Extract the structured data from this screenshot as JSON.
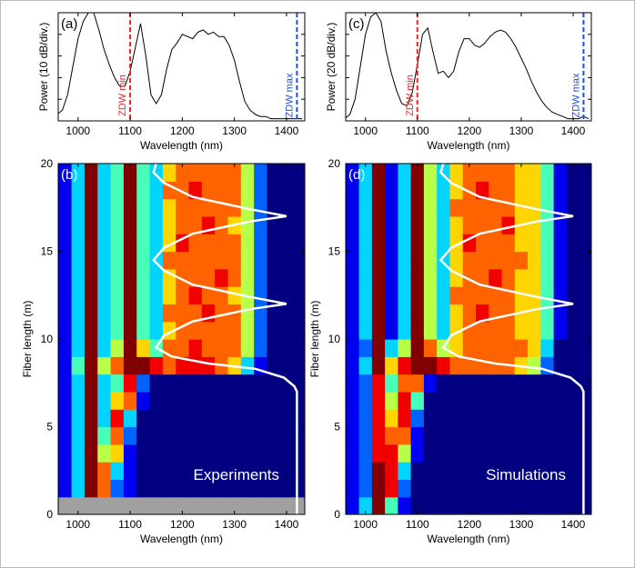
{
  "chart_data": [
    {
      "type": "line",
      "panel_label": "(a)",
      "xlabel": "Wavelength (nm)",
      "ylabel": "Power (10 dB/div.)",
      "xlim": [
        962,
        1435
      ],
      "xticks": [
        1000,
        1100,
        1200,
        1300,
        1400
      ],
      "ylim": [
        0,
        5
      ],
      "yticks": [
        0,
        1,
        2,
        3,
        4,
        5
      ],
      "show_ytick_labels": false,
      "x": [
        960,
        970,
        980,
        990,
        1000,
        1010,
        1020,
        1030,
        1040,
        1050,
        1060,
        1070,
        1080,
        1090,
        1100,
        1110,
        1120,
        1130,
        1140,
        1150,
        1160,
        1170,
        1180,
        1190,
        1200,
        1210,
        1220,
        1230,
        1240,
        1250,
        1260,
        1270,
        1280,
        1290,
        1300,
        1310,
        1320,
        1330,
        1340,
        1350,
        1360,
        1370,
        1380,
        1390,
        1400,
        1410,
        1420,
        1430
      ],
      "series": [
        {
          "color": "#000000",
          "values": [
            0.3,
            0.5,
            1.2,
            2.5,
            3.8,
            4.6,
            5.0,
            5.0,
            4.2,
            3.3,
            2.6,
            2.0,
            1.6,
            1.6,
            2.3,
            3.4,
            4.5,
            3.0,
            1.2,
            0.8,
            1.2,
            2.4,
            3.3,
            3.6,
            4.0,
            3.9,
            3.8,
            4.1,
            4.2,
            4.0,
            4.1,
            3.9,
            3.9,
            3.5,
            2.8,
            1.8,
            0.9,
            0.5,
            0.3,
            0.2,
            0.2,
            0.1,
            0.1,
            0.1,
            0.1,
            0.1,
            0.1,
            0.1
          ]
        }
      ],
      "vlines": [
        {
          "x": 1100,
          "label": "ZDW min",
          "color": "#e8262a"
        },
        {
          "x": 1420,
          "label": "ZDW max",
          "color": "#1f4fd8"
        }
      ]
    },
    {
      "type": "heatmap",
      "panel_label": "(b)",
      "xlabel": "Wavelength (nm)",
      "ylabel": "Fiber length (m)",
      "annotation": "Experiments",
      "xlim": [
        962,
        1435
      ],
      "xticks": [
        1000,
        1100,
        1200,
        1300,
        1400
      ],
      "ylim": [
        0,
        20
      ],
      "yticks": [
        0,
        5,
        10,
        15,
        20
      ],
      "zlim": [
        0,
        9
      ],
      "null_color": "#a0a0a0",
      "x_bins": [
        962.5,
        987.5,
        1012.5,
        1037.5,
        1062.5,
        1087.5,
        1112.5,
        1137.5,
        1162.5,
        1187.5,
        1212.5,
        1237.5,
        1262.5,
        1287.5,
        1312.5,
        1337.5,
        1362.5,
        1387.5,
        1412.5,
        1437.5
      ],
      "y_bins": [
        0,
        1,
        2,
        3,
        4,
        5,
        6,
        7,
        8,
        9,
        10,
        11,
        12,
        13,
        14,
        15,
        16,
        17,
        18,
        19,
        20
      ],
      "z": [
        [
          null,
          null,
          null,
          null,
          null,
          null,
          null,
          null,
          null,
          null,
          null,
          null,
          null,
          null,
          null,
          null,
          null,
          null,
          null
        ],
        [
          1,
          3,
          9,
          7,
          2,
          1,
          0,
          0,
          0,
          0,
          0,
          0,
          0,
          0,
          0,
          0,
          0,
          0,
          0
        ],
        [
          1,
          3,
          9,
          7,
          3,
          1,
          0,
          0,
          0,
          0,
          0,
          0,
          0,
          0,
          0,
          0,
          0,
          0,
          0
        ],
        [
          1,
          3,
          9,
          5,
          6,
          1,
          0,
          0,
          0,
          0,
          0,
          0,
          0,
          0,
          0,
          0,
          0,
          0,
          0
        ],
        [
          1,
          3,
          9,
          4,
          7,
          2,
          0,
          0,
          0,
          0,
          0,
          0,
          0,
          0,
          0,
          0,
          0,
          0,
          0
        ],
        [
          1,
          3,
          9,
          3,
          8,
          3,
          0,
          0,
          0,
          0,
          0,
          0,
          0,
          0,
          0,
          0,
          0,
          0,
          0
        ],
        [
          1,
          3,
          9,
          3,
          6,
          7,
          1,
          0,
          0,
          0,
          0,
          0,
          0,
          0,
          0,
          0,
          0,
          0,
          0
        ],
        [
          1,
          3,
          9,
          3,
          4,
          8,
          2,
          0,
          0,
          0,
          0,
          0,
          0,
          0,
          0,
          0,
          0,
          0,
          0
        ],
        [
          1,
          4,
          9,
          5,
          7,
          9,
          9,
          8,
          7,
          8,
          8,
          8,
          7,
          6,
          3,
          1,
          0,
          0,
          0
        ],
        [
          1,
          3,
          9,
          3,
          5,
          9,
          6,
          4,
          7,
          7,
          8,
          7,
          7,
          7,
          5,
          2,
          0,
          0,
          0
        ],
        [
          1,
          3,
          9,
          3,
          4,
          9,
          4,
          3,
          6,
          7,
          7,
          7,
          7,
          7,
          5,
          2,
          0,
          0,
          0
        ],
        [
          1,
          3,
          9,
          3,
          4,
          9,
          4,
          3,
          7,
          7,
          7,
          8,
          7,
          7,
          5,
          2,
          0,
          0,
          0
        ],
        [
          1,
          3,
          9,
          3,
          4,
          9,
          4,
          3,
          6,
          7,
          8,
          7,
          7,
          6,
          5,
          2,
          0,
          0,
          0
        ],
        [
          1,
          3,
          9,
          3,
          4,
          9,
          4,
          3,
          6,
          7,
          7,
          7,
          8,
          7,
          5,
          2,
          0,
          0,
          0
        ],
        [
          1,
          3,
          9,
          3,
          4,
          9,
          4,
          3,
          7,
          7,
          7,
          7,
          7,
          7,
          5,
          2,
          0,
          0,
          0
        ],
        [
          1,
          3,
          9,
          3,
          4,
          9,
          4,
          3,
          6,
          8,
          7,
          7,
          7,
          7,
          5,
          2,
          0,
          0,
          0
        ],
        [
          1,
          3,
          9,
          3,
          4,
          9,
          4,
          3,
          6,
          7,
          7,
          8,
          7,
          6,
          5,
          2,
          0,
          0,
          0
        ],
        [
          1,
          3,
          9,
          3,
          4,
          9,
          4,
          3,
          6,
          7,
          7,
          7,
          7,
          7,
          5,
          2,
          0,
          0,
          0
        ],
        [
          1,
          3,
          9,
          3,
          4,
          9,
          4,
          3,
          7,
          7,
          8,
          7,
          7,
          7,
          5,
          2,
          0,
          0,
          0
        ],
        [
          1,
          3,
          9,
          3,
          4,
          9,
          4,
          3,
          6,
          7,
          7,
          7,
          7,
          7,
          5,
          2,
          0,
          0,
          0
        ]
      ],
      "overlay": {
        "color": "#ffffff",
        "x": [
          1420,
          1420,
          1415,
          1395,
          1340,
          1250,
          1180,
          1150,
          1165,
          1220,
          1330,
          1400,
          1330,
          1220,
          1165,
          1145,
          1165,
          1220,
          1330,
          1400,
          1330,
          1220,
          1165,
          1145,
          1150
        ],
        "y": [
          0,
          7.0,
          7.3,
          7.8,
          8.3,
          8.6,
          9.0,
          9.5,
          10.2,
          11.0,
          11.7,
          12.0,
          12.4,
          13.1,
          13.9,
          14.5,
          15.2,
          16.0,
          16.7,
          17.0,
          17.4,
          18.1,
          18.9,
          19.5,
          20
        ]
      }
    },
    {
      "type": "line",
      "panel_label": "(c)",
      "xlabel": "Wavelength (nm)",
      "ylabel": "Power (20 dB/div.)",
      "xlim": [
        962,
        1435
      ],
      "xticks": [
        1000,
        1100,
        1200,
        1300,
        1400
      ],
      "ylim": [
        0,
        5
      ],
      "yticks": [
        0,
        1,
        2,
        3,
        4,
        5
      ],
      "show_ytick_labels": false,
      "x": [
        960,
        970,
        980,
        990,
        1000,
        1010,
        1020,
        1030,
        1040,
        1050,
        1060,
        1070,
        1080,
        1090,
        1100,
        1110,
        1120,
        1130,
        1140,
        1150,
        1160,
        1170,
        1180,
        1190,
        1200,
        1210,
        1220,
        1230,
        1240,
        1250,
        1260,
        1270,
        1280,
        1290,
        1300,
        1310,
        1320,
        1330,
        1340,
        1350,
        1360,
        1370,
        1380,
        1390,
        1400,
        1410,
        1420,
        1430
      ],
      "series": [
        {
          "color": "#000000",
          "values": [
            0.1,
            0.3,
            1.0,
            2.5,
            4.0,
            4.8,
            5.0,
            4.6,
            3.2,
            2.2,
            1.4,
            0.8,
            0.7,
            1.3,
            2.6,
            4.0,
            4.3,
            3.2,
            2.2,
            2.3,
            2.0,
            2.3,
            3.2,
            3.8,
            3.8,
            3.5,
            3.4,
            3.6,
            3.9,
            4.1,
            4.2,
            4.1,
            3.8,
            3.4,
            2.9,
            2.4,
            1.8,
            1.3,
            0.9,
            0.6,
            0.4,
            0.3,
            0.2,
            0.1,
            0.1,
            0.1,
            0.2,
            0.1
          ]
        }
      ],
      "vlines": [
        {
          "x": 1100,
          "label": "ZDW min",
          "color": "#e8262a"
        },
        {
          "x": 1420,
          "label": "ZDW max",
          "color": "#1f4fd8"
        }
      ]
    },
    {
      "type": "heatmap",
      "panel_label": "(d)",
      "xlabel": "Wavelength (nm)",
      "ylabel": "Fiber length (m)",
      "annotation": "Simulations",
      "xlim": [
        962,
        1435
      ],
      "xticks": [
        1000,
        1100,
        1200,
        1300,
        1400
      ],
      "ylim": [
        0,
        20
      ],
      "yticks": [
        0,
        5,
        10,
        15,
        20
      ],
      "zlim": [
        0,
        9
      ],
      "null_color": "#a0a0a0",
      "x_bins": [
        962.5,
        987.5,
        1012.5,
        1037.5,
        1062.5,
        1087.5,
        1112.5,
        1137.5,
        1162.5,
        1187.5,
        1212.5,
        1237.5,
        1262.5,
        1287.5,
        1312.5,
        1337.5,
        1362.5,
        1387.5,
        1412.5,
        1437.5
      ],
      "y_bins": [
        0,
        1,
        2,
        3,
        4,
        5,
        6,
        7,
        8,
        9,
        10,
        11,
        12,
        13,
        14,
        15,
        16,
        17,
        18,
        19,
        20
      ],
      "z": [
        [
          1,
          3,
          9,
          4,
          1,
          0,
          0,
          0,
          0,
          0,
          0,
          0,
          0,
          0,
          0,
          0,
          0,
          0,
          0
        ],
        [
          1,
          2,
          9,
          8,
          2,
          0,
          0,
          0,
          0,
          0,
          0,
          0,
          0,
          0,
          0,
          0,
          0,
          0,
          0
        ],
        [
          1,
          2,
          9,
          8,
          3,
          0,
          0,
          0,
          0,
          0,
          0,
          0,
          0,
          0,
          0,
          0,
          0,
          0,
          0
        ],
        [
          1,
          2,
          8,
          8,
          5,
          1,
          0,
          0,
          0,
          0,
          0,
          0,
          0,
          0,
          0,
          0,
          0,
          0,
          0
        ],
        [
          1,
          2,
          8,
          7,
          7,
          1,
          0,
          0,
          0,
          0,
          0,
          0,
          0,
          0,
          0,
          0,
          0,
          0,
          0
        ],
        [
          1,
          2,
          8,
          6,
          8,
          2,
          0,
          0,
          0,
          0,
          0,
          0,
          0,
          0,
          0,
          0,
          0,
          0,
          0
        ],
        [
          1,
          2,
          8,
          5,
          8,
          4,
          0,
          0,
          0,
          0,
          0,
          0,
          0,
          0,
          0,
          0,
          0,
          0,
          0
        ],
        [
          1,
          2,
          8,
          4,
          7,
          7,
          1,
          0,
          0,
          0,
          0,
          0,
          0,
          0,
          0,
          0,
          0,
          0,
          0
        ],
        [
          1,
          3,
          9,
          6,
          8,
          9,
          9,
          8,
          7,
          7,
          7,
          7,
          7,
          6,
          5,
          2,
          0,
          0,
          0
        ],
        [
          1,
          2,
          9,
          3,
          5,
          9,
          7,
          5,
          6,
          7,
          7,
          7,
          7,
          7,
          6,
          3,
          0,
          0,
          0
        ],
        [
          1,
          3,
          9,
          1,
          3,
          9,
          5,
          3,
          6,
          7,
          7,
          7,
          7,
          6,
          6,
          4,
          1,
          0,
          0
        ],
        [
          1,
          3,
          9,
          1,
          3,
          9,
          5,
          3,
          6,
          7,
          8,
          7,
          7,
          6,
          6,
          4,
          1,
          0,
          0
        ],
        [
          1,
          3,
          9,
          1,
          3,
          9,
          5,
          3,
          7,
          7,
          7,
          7,
          7,
          6,
          6,
          4,
          1,
          0,
          0
        ],
        [
          1,
          3,
          9,
          1,
          3,
          9,
          5,
          3,
          6,
          7,
          7,
          8,
          7,
          6,
          6,
          4,
          1,
          0,
          0
        ],
        [
          1,
          3,
          9,
          1,
          3,
          9,
          5,
          3,
          6,
          7,
          7,
          7,
          7,
          7,
          6,
          4,
          1,
          0,
          0
        ],
        [
          1,
          3,
          9,
          1,
          3,
          9,
          5,
          3,
          6,
          8,
          7,
          7,
          7,
          6,
          6,
          4,
          1,
          0,
          0
        ],
        [
          1,
          3,
          9,
          1,
          3,
          9,
          5,
          3,
          6,
          7,
          7,
          7,
          8,
          6,
          6,
          4,
          1,
          0,
          0
        ],
        [
          1,
          3,
          9,
          1,
          3,
          9,
          5,
          3,
          7,
          7,
          7,
          7,
          7,
          6,
          6,
          4,
          1,
          0,
          0
        ],
        [
          1,
          3,
          9,
          1,
          3,
          9,
          5,
          3,
          6,
          7,
          8,
          7,
          7,
          6,
          6,
          4,
          1,
          0,
          0
        ],
        [
          1,
          3,
          9,
          1,
          3,
          9,
          5,
          3,
          6,
          7,
          7,
          7,
          7,
          6,
          6,
          4,
          1,
          0,
          0
        ]
      ],
      "overlay": {
        "color": "#ffffff",
        "x": [
          1420,
          1420,
          1415,
          1395,
          1340,
          1250,
          1180,
          1150,
          1165,
          1220,
          1330,
          1400,
          1330,
          1220,
          1165,
          1145,
          1165,
          1220,
          1330,
          1400,
          1330,
          1220,
          1165,
          1145,
          1150
        ],
        "y": [
          0,
          7.0,
          7.3,
          7.8,
          8.3,
          8.6,
          9.0,
          9.5,
          10.2,
          11.0,
          11.7,
          12.0,
          12.4,
          13.1,
          13.9,
          14.5,
          15.2,
          16.0,
          16.7,
          17.0,
          17.4,
          18.1,
          18.9,
          19.5,
          20
        ]
      }
    }
  ]
}
